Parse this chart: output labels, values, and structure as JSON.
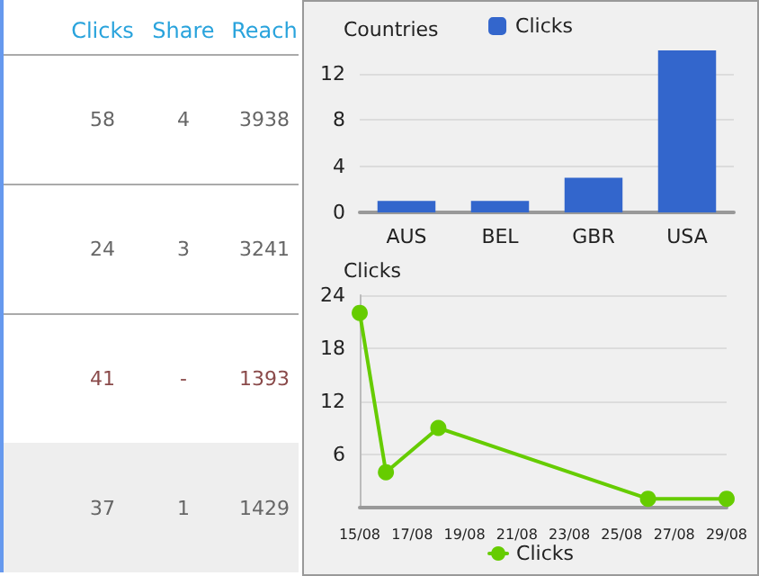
{
  "chart_data": [
    {
      "type": "other",
      "categories": [
        "Clicks",
        "Share",
        "Reach"
      ],
      "annotations": [
        "58",
        "4",
        "3938",
        "24",
        "3",
        "3241",
        "41",
        "-",
        "1393",
        "37",
        "1",
        "1429"
      ]
    },
    {
      "type": "bar",
      "title": "Countries",
      "categories": [
        "AUS",
        "BEL",
        "GBR",
        "USA"
      ],
      "series": [
        {
          "name": "Clicks",
          "color": "#3366cc",
          "values": [
            1,
            1,
            3,
            14
          ]
        }
      ],
      "ylim": [
        0,
        14
      ],
      "yticks": [
        0,
        4,
        8,
        12
      ],
      "grid": "y",
      "legend": "top"
    },
    {
      "type": "line",
      "title": "Clicks",
      "x": [
        "--08-15",
        "--08-16",
        "--08-18",
        "--08-26",
        "--08-29"
      ],
      "series": [
        {
          "name": "Clicks",
          "color": "#66cc00",
          "values": [
            22,
            4,
            9,
            1,
            1
          ]
        }
      ],
      "xlim": [
        "--08-15",
        "--08-29"
      ],
      "xticks": [
        {
          "value": "--08-15",
          "label": "15/08"
        },
        {
          "value": "--08-17",
          "label": "17/08"
        },
        {
          "value": "--08-19",
          "label": "19/08"
        },
        {
          "value": "--08-21",
          "label": "21/08"
        },
        {
          "value": "--08-23",
          "label": "23/08"
        },
        {
          "value": "--08-25",
          "label": "25/08"
        },
        {
          "value": "--08-27",
          "label": "27/08"
        },
        {
          "value": "--08-29",
          "label": "29/08"
        }
      ],
      "ylim": [
        0,
        24
      ],
      "yticks": [
        6,
        12,
        18,
        24
      ],
      "grid": "y",
      "legend": "bottom",
      "marker": "circle",
      "line_style": "solid"
    }
  ]
}
